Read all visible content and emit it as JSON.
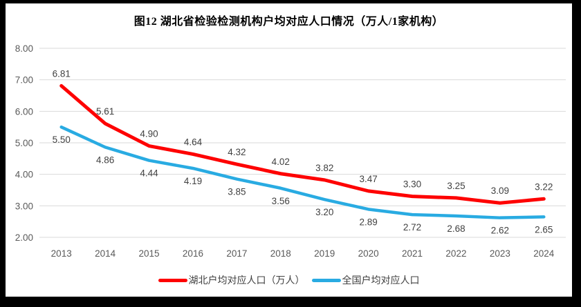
{
  "title": "图12 湖北省检验检测机构户均对应人口情况（万人/1家机构）",
  "chart_data": {
    "type": "line",
    "categories": [
      "2013",
      "2014",
      "2015",
      "2016",
      "2017",
      "2018",
      "2019",
      "2020",
      "2021",
      "2022",
      "2023",
      "2024"
    ],
    "series": [
      {
        "name": "湖北户均对应人口（万人）",
        "color": "#FE0000",
        "stroke_width": 5,
        "label_position": "above",
        "values": [
          6.81,
          5.61,
          4.9,
          4.64,
          4.32,
          4.02,
          3.82,
          3.47,
          3.3,
          3.25,
          3.09,
          3.22
        ]
      },
      {
        "name": "全国户均对应人口",
        "color": "#29ABE2",
        "stroke_width": 4.5,
        "label_position": "below",
        "values": [
          5.5,
          4.86,
          4.44,
          4.19,
          3.85,
          3.56,
          3.2,
          2.89,
          2.72,
          2.68,
          2.62,
          2.65
        ]
      }
    ],
    "ylim": [
      2.0,
      8.0
    ],
    "ytick_step": 1.0,
    "ytick_labels": [
      "8.00",
      "7.00",
      "6.00",
      "5.00",
      "4.00",
      "3.00",
      "2.00"
    ],
    "value_decimals": 2,
    "grid": true,
    "legend_position": "bottom",
    "xlabel": "",
    "ylabel": ""
  },
  "colors": {
    "grid_line": "#D9D9D9",
    "axis_text": "#595959",
    "data_label_text": "#404040",
    "frame_border": "#000000",
    "background": "#FFFFFF"
  }
}
